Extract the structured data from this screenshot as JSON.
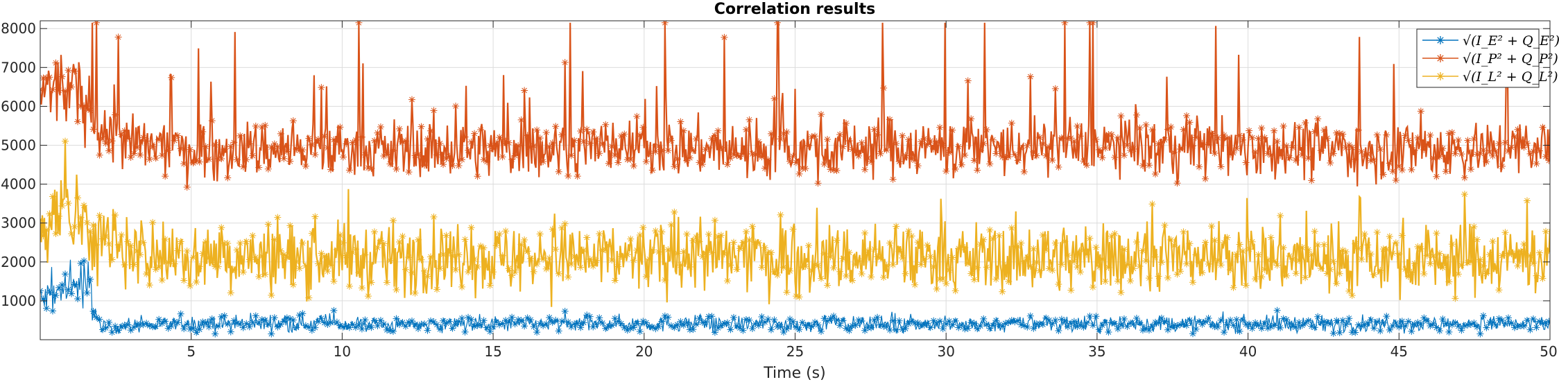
{
  "chart_data": {
    "type": "line",
    "title": "Correlation results",
    "xlabel": "Time (s)",
    "ylabel": "",
    "xlim": [
      0,
      50
    ],
    "ylim": [
      0,
      8200
    ],
    "xticks": [
      5,
      10,
      15,
      20,
      25,
      30,
      35,
      40,
      45,
      50
    ],
    "yticks": [
      1000,
      2000,
      3000,
      4000,
      5000,
      6000,
      7000,
      8000
    ],
    "grid": true,
    "marker": "asterisk",
    "legend_position": "top-right",
    "series": [
      {
        "name": "√(I_E² + Q_E²)",
        "color": "#0072BD",
        "x": [
          0.1,
          0.3,
          0.6,
          0.9,
          1.2,
          1.4,
          1.6,
          2,
          3,
          5,
          8,
          12,
          16,
          20,
          25,
          30,
          35,
          40,
          45,
          50
        ],
        "values": [
          1000,
          1100,
          1200,
          1300,
          1400,
          1450,
          1350,
          300,
          350,
          400,
          420,
          380,
          400,
          410,
          400,
          390,
          400,
          410,
          400,
          400
        ]
      },
      {
        "name": "√(I_P² + Q_P²)",
        "color": "#D95319",
        "x": [
          0.1,
          0.5,
          1,
          1.5,
          2,
          3,
          5,
          10,
          15,
          20,
          25,
          28,
          30,
          35,
          40,
          45,
          50
        ],
        "values": [
          6300,
          6500,
          6400,
          6100,
          5400,
          5000,
          4900,
          4900,
          4900,
          4950,
          4900,
          5000,
          4900,
          4950,
          4950,
          4900,
          4900
        ]
      },
      {
        "name": "√(I_L² + Q_L²)",
        "color": "#EDB120",
        "x": [
          0.1,
          0.5,
          1,
          1.5,
          2,
          3,
          5,
          10,
          15,
          20,
          25,
          30,
          35,
          40,
          45,
          50
        ],
        "values": [
          3000,
          3100,
          3000,
          2900,
          2600,
          2200,
          2100,
          2100,
          2100,
          2100,
          2100,
          2100,
          2100,
          2100,
          2100,
          2100
        ]
      }
    ]
  }
}
